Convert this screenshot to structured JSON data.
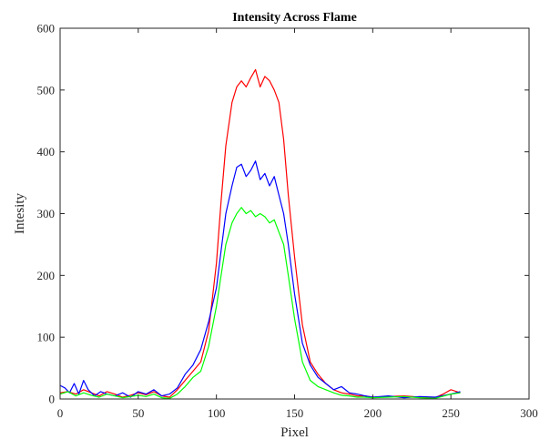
{
  "chart_data": {
    "type": "line",
    "title": "Intensity Across Flame",
    "xlabel": "Pixel",
    "ylabel": "Intesity",
    "xlim": [
      0,
      300
    ],
    "ylim": [
      0,
      600
    ],
    "xticks": [
      0,
      50,
      100,
      150,
      200,
      250,
      300
    ],
    "yticks": [
      0,
      100,
      200,
      300,
      400,
      500,
      600
    ],
    "grid": false,
    "legend": "none",
    "series": [
      {
        "color": "#ff0000",
        "x": [
          0,
          5,
          10,
          15,
          20,
          25,
          30,
          35,
          40,
          45,
          50,
          55,
          60,
          65,
          70,
          75,
          80,
          85,
          90,
          95,
          100,
          103,
          106,
          110,
          113,
          116,
          119,
          122,
          125,
          128,
          131,
          134,
          137,
          140,
          143,
          146,
          150,
          155,
          160,
          165,
          170,
          175,
          180,
          185,
          190,
          195,
          200,
          210,
          220,
          230,
          240,
          245,
          250,
          256
        ],
        "y": [
          10,
          12,
          8,
          15,
          10,
          5,
          12,
          8,
          3,
          6,
          10,
          7,
          12,
          5,
          3,
          15,
          30,
          45,
          60,
          110,
          220,
          320,
          410,
          480,
          505,
          515,
          505,
          520,
          533,
          505,
          522,
          515,
          500,
          480,
          420,
          330,
          230,
          120,
          60,
          40,
          25,
          15,
          10,
          8,
          5,
          5,
          3,
          4,
          5,
          3,
          2,
          8,
          15,
          10
        ]
      },
      {
        "color": "#0000ff",
        "x": [
          0,
          3,
          6,
          9,
          12,
          15,
          18,
          22,
          26,
          30,
          35,
          40,
          45,
          50,
          55,
          60,
          65,
          70,
          75,
          80,
          85,
          90,
          95,
          100,
          103,
          106,
          110,
          113,
          116,
          119,
          122,
          125,
          128,
          131,
          134,
          137,
          140,
          143,
          146,
          150,
          155,
          160,
          165,
          170,
          175,
          180,
          185,
          190,
          195,
          200,
          210,
          220,
          230,
          240,
          250,
          256
        ],
        "y": [
          22,
          18,
          10,
          25,
          8,
          30,
          15,
          5,
          12,
          8,
          5,
          10,
          3,
          12,
          8,
          15,
          5,
          8,
          18,
          40,
          55,
          80,
          125,
          180,
          240,
          300,
          345,
          375,
          380,
          360,
          370,
          385,
          355,
          365,
          345,
          360,
          330,
          300,
          250,
          170,
          90,
          55,
          35,
          25,
          15,
          20,
          10,
          8,
          5,
          3,
          5,
          2,
          4,
          3,
          8,
          12
        ]
      },
      {
        "color": "#00ff00",
        "x": [
          0,
          5,
          10,
          15,
          20,
          25,
          30,
          35,
          40,
          45,
          50,
          55,
          60,
          65,
          70,
          75,
          80,
          85,
          90,
          95,
          100,
          103,
          106,
          110,
          113,
          116,
          119,
          122,
          125,
          128,
          131,
          134,
          137,
          140,
          143,
          146,
          150,
          155,
          160,
          165,
          170,
          175,
          180,
          185,
          190,
          195,
          200,
          210,
          220,
          230,
          240,
          250,
          256
        ],
        "y": [
          8,
          12,
          5,
          10,
          6,
          3,
          8,
          5,
          2,
          4,
          6,
          4,
          8,
          2,
          1,
          8,
          20,
          35,
          45,
          85,
          150,
          200,
          250,
          285,
          300,
          310,
          300,
          305,
          295,
          300,
          295,
          285,
          290,
          270,
          250,
          200,
          130,
          60,
          30,
          20,
          15,
          10,
          6,
          5,
          3,
          3,
          2,
          3,
          4,
          2,
          1,
          8,
          10
        ]
      }
    ]
  }
}
